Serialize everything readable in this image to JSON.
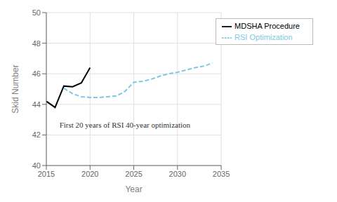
{
  "chart_data": {
    "type": "line",
    "x_label": "Year",
    "y_label": "Skid Number",
    "x": [
      2015,
      2016,
      2017,
      2018,
      2019,
      2020,
      2021,
      2022,
      2023,
      2024,
      2025,
      2026,
      2027,
      2028,
      2029,
      2030,
      2031,
      2032,
      2033,
      2034
    ],
    "series": [
      {
        "name": "MDSHA Procedure",
        "color": "#000000",
        "line_style": "solid",
        "values": [
          44.2,
          43.8,
          45.2,
          45.15,
          45.4,
          46.4,
          null,
          null,
          null,
          null,
          null,
          null,
          null,
          null,
          null,
          null,
          null,
          null,
          null,
          null
        ]
      },
      {
        "name": "RSI Optimization",
        "color": "#7ec8e3",
        "line_style": "dashed",
        "values": [
          null,
          null,
          45.05,
          44.7,
          44.5,
          44.45,
          44.45,
          44.5,
          44.55,
          44.85,
          45.45,
          45.5,
          45.65,
          45.85,
          46.0,
          46.1,
          46.25,
          46.4,
          46.5,
          46.7
        ]
      }
    ],
    "annotations": [
      {
        "text": "First 20 years of RSI 40-year optimization",
        "x": 2016.5,
        "y": 42.65
      }
    ],
    "xlim": [
      2015,
      2035
    ],
    "ylim": [
      40,
      50
    ],
    "xticks": [
      2015,
      2020,
      2025,
      2030,
      2035
    ],
    "yticks": [
      40,
      42,
      44,
      46,
      48,
      50
    ],
    "grid": true,
    "legend": "upper right"
  }
}
